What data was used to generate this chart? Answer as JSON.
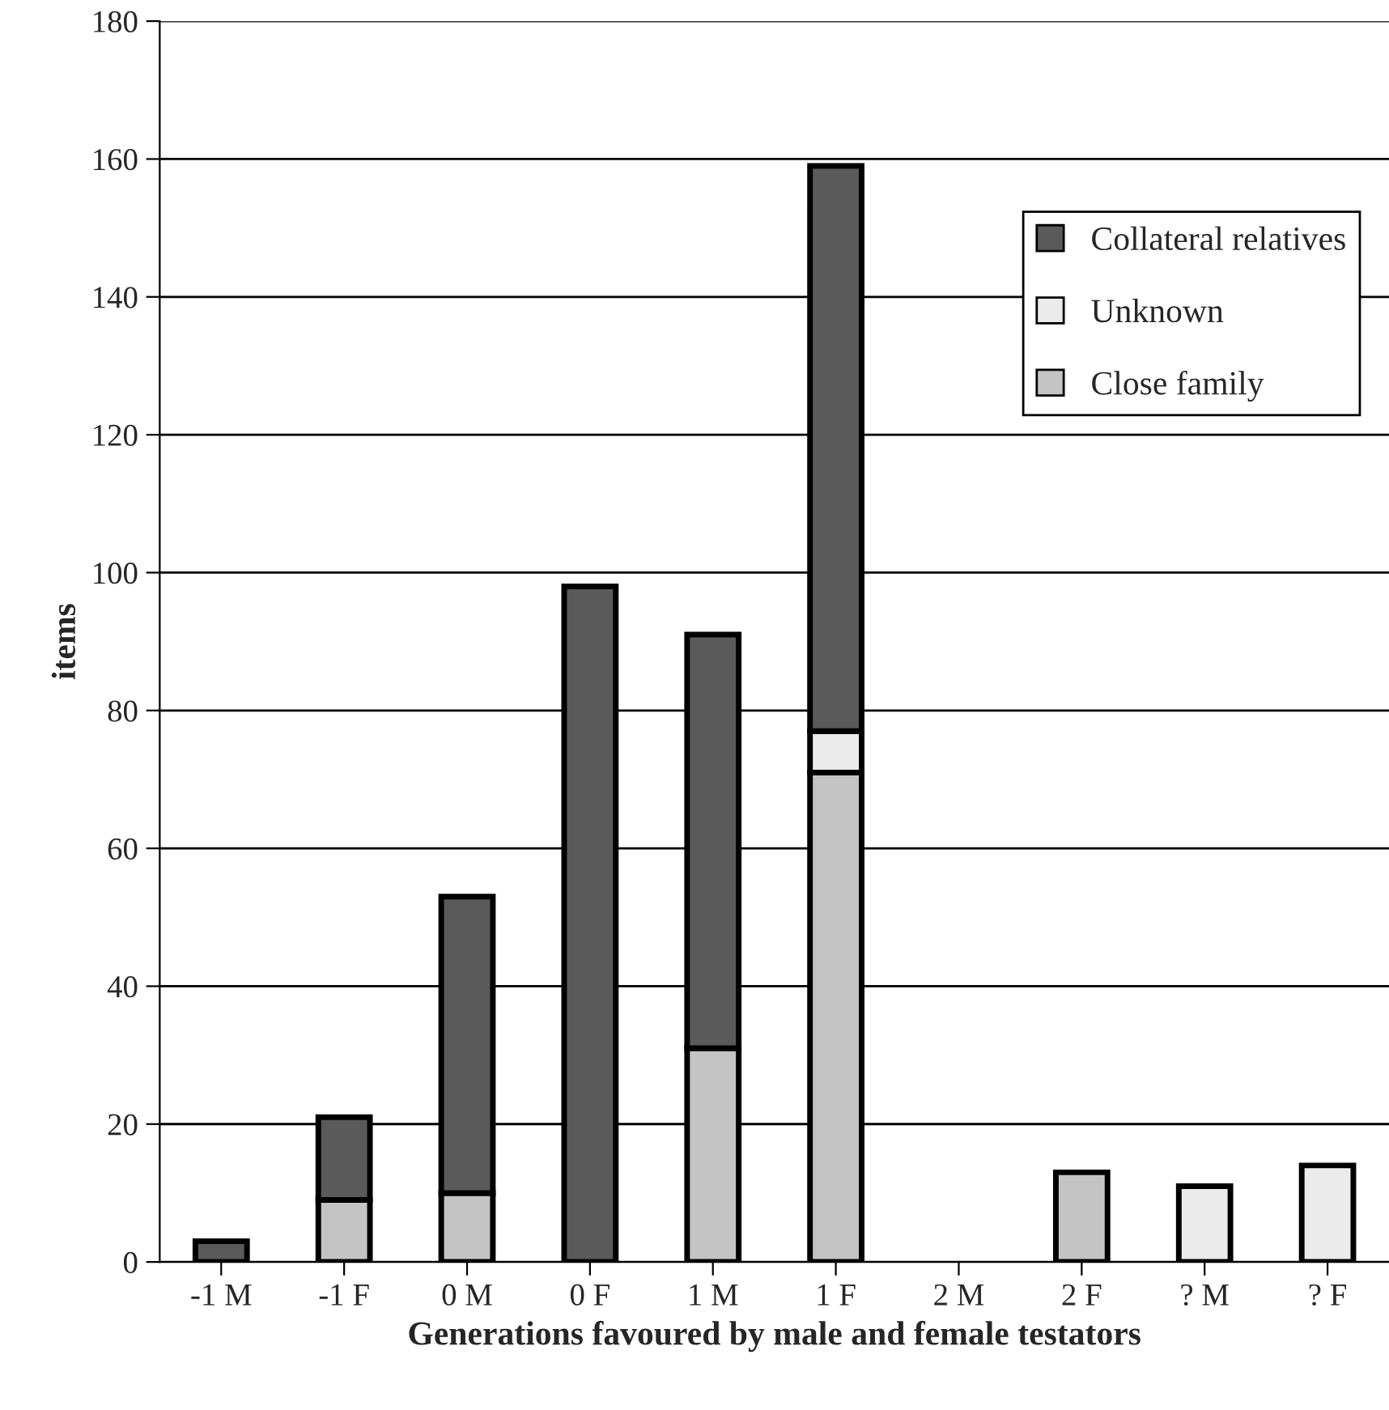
{
  "chart_data": {
    "type": "bar",
    "stacked": true,
    "xlabel": "Generations favoured by male and female testators",
    "ylabel": "items",
    "categories": [
      "-1 M",
      "-1 F",
      "0 M",
      "0 F",
      "1 M",
      "1 F",
      "2 M",
      "2 F",
      "? M",
      "? F"
    ],
    "series": [
      {
        "name": "Close family",
        "color": "#c4c4c4",
        "values": [
          null,
          9,
          10,
          null,
          31,
          71,
          null,
          13,
          null,
          null
        ]
      },
      {
        "name": "Unknown",
        "color": "#ebebeb",
        "values": [
          null,
          null,
          null,
          null,
          null,
          6,
          null,
          null,
          11,
          14
        ]
      },
      {
        "name": "Collateral relatives",
        "color": "#5a5a5a",
        "values": [
          3,
          12,
          43,
          98,
          60,
          82,
          null,
          null,
          null,
          null
        ]
      }
    ],
    "ylim": [
      0,
      180
    ],
    "yticks": [
      0,
      20,
      40,
      60,
      80,
      100,
      120,
      140,
      160,
      180
    ],
    "grid": "y",
    "legend": "top right"
  }
}
